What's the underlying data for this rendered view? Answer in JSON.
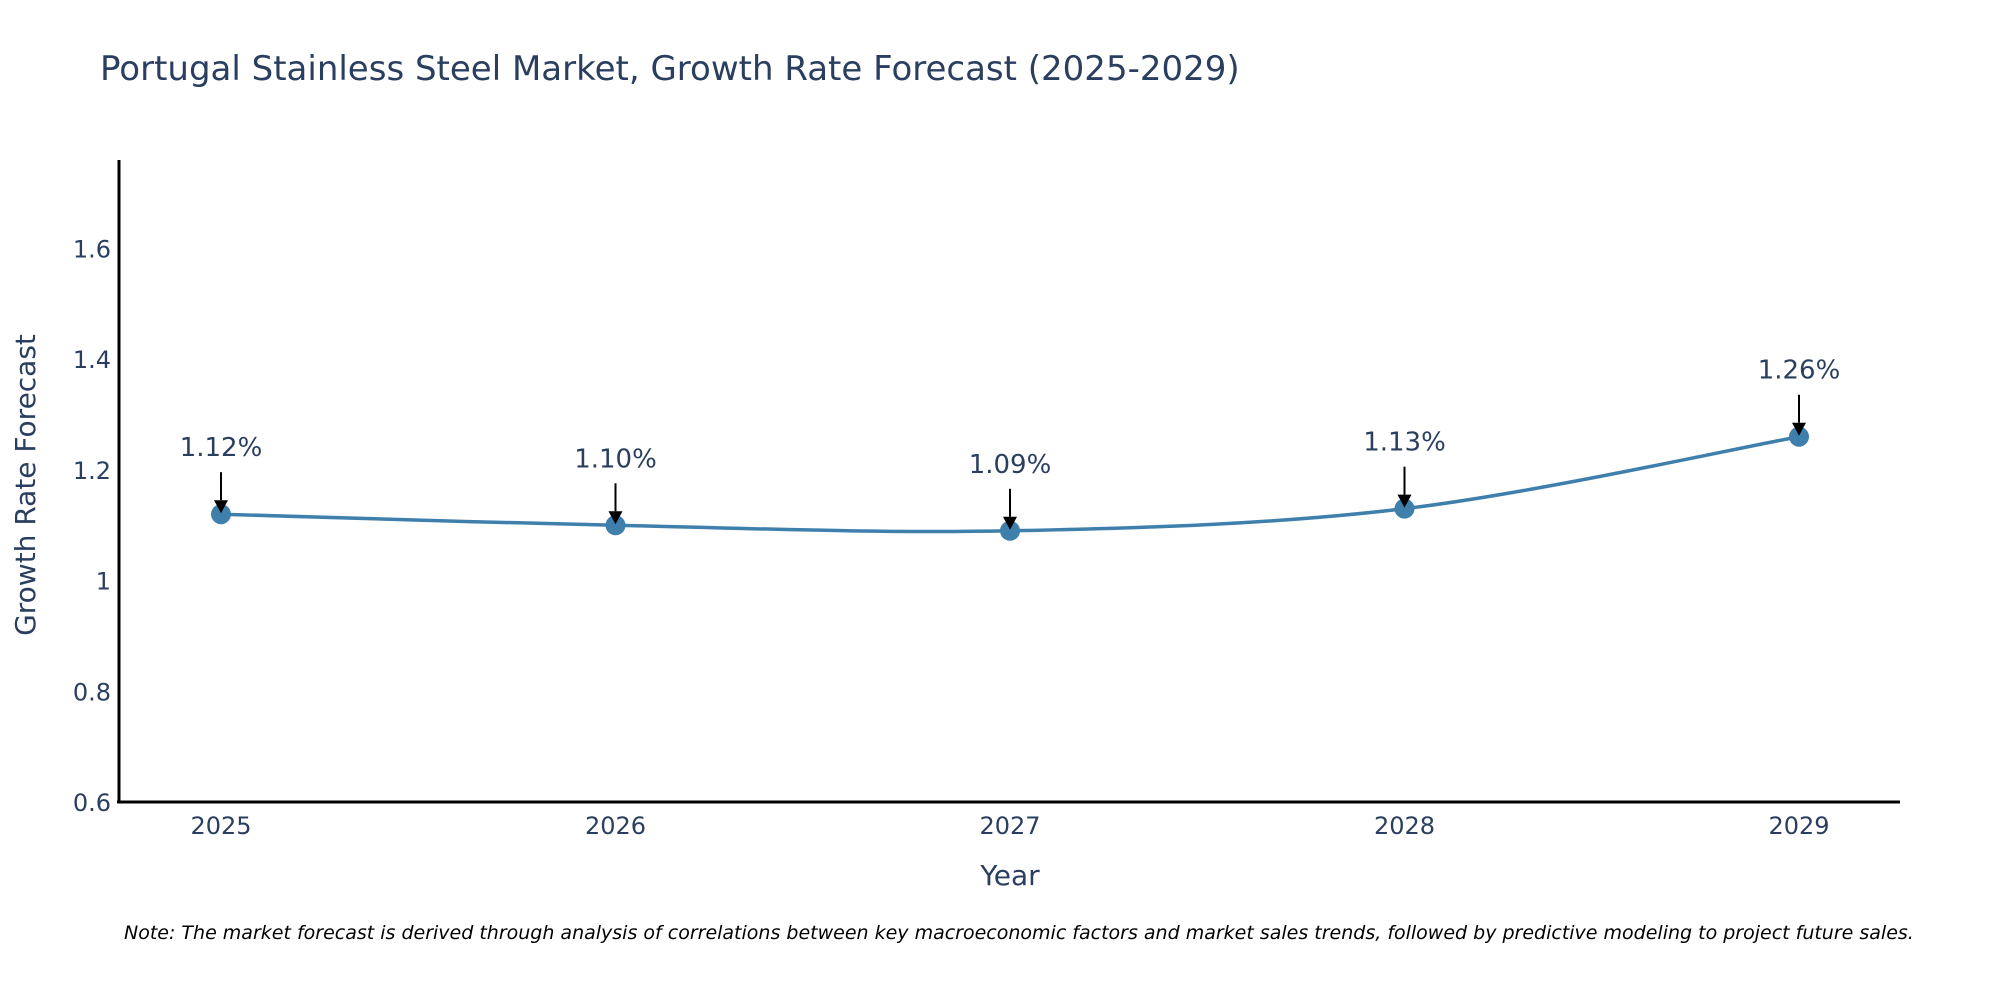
{
  "chart_data": {
    "type": "line",
    "title": "Portugal Stainless Steel Market, Growth Rate Forecast (2025-2029)",
    "xlabel": "Year",
    "ylabel": "Growth Rate Forecast",
    "categories": [
      "2025",
      "2026",
      "2027",
      "2028",
      "2029"
    ],
    "values": [
      1.12,
      1.1,
      1.09,
      1.13,
      1.26
    ],
    "data_labels": [
      "1.12%",
      "1.10%",
      "1.09%",
      "1.13%",
      "1.26%"
    ],
    "y_ticks": [
      0.6,
      0.8,
      1,
      1.2,
      1.4,
      1.6
    ],
    "y_tick_labels": [
      "0.6",
      "0.8",
      "1",
      "1.2",
      "1.4",
      "1.6"
    ],
    "ylim": [
      0.6,
      1.76
    ],
    "grid": false,
    "line_shape": "spline",
    "note": "Note: The market forecast is derived through analysis of correlations between key macroeconomic factors and market sales trends, followed by predictive modeling to project future sales."
  },
  "colors": {
    "line": "#3f7fac",
    "marker": "#3f7fac",
    "axis": "#000000",
    "text": "#2a3f5f",
    "arrow": "#000000"
  }
}
